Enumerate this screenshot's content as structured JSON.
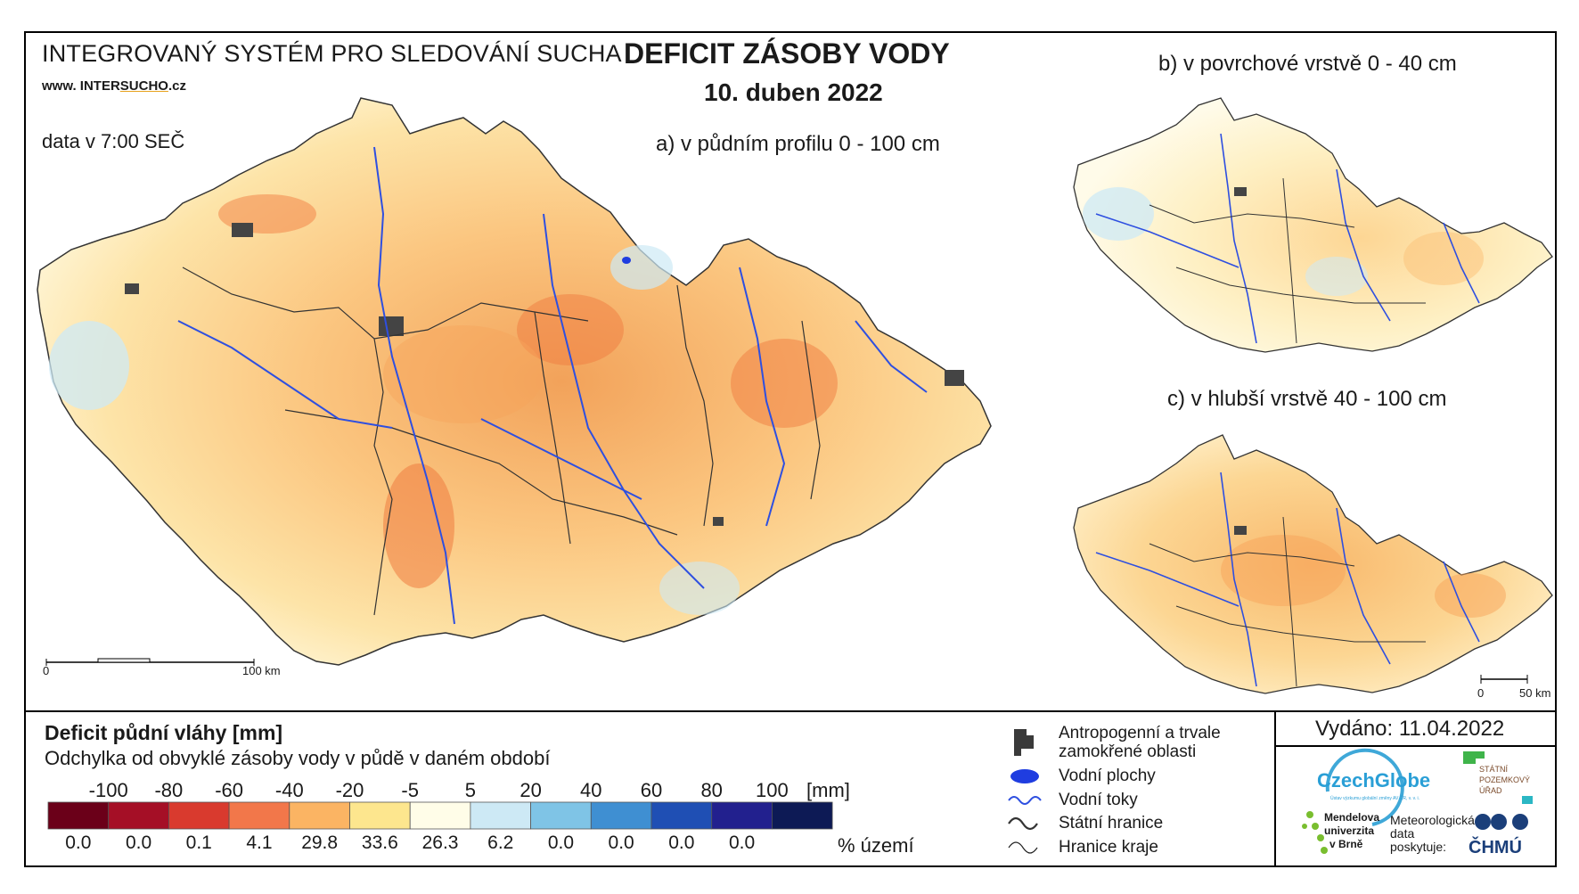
{
  "header": {
    "system_title": "INTEGROVANÝ SYSTÉM PRO SLEDOVÁNÍ SUCHA",
    "website_prefix": "www. INTER",
    "website_brand": "SUCHO",
    "website_suffix": ".cz",
    "data_time": "data v 7:00 SEČ",
    "main_title": "DEFICIT ZÁSOBY VODY",
    "main_date": "10. duben 2022"
  },
  "maps": {
    "a_label": "a) v půdním profilu 0 - 100 cm",
    "b_label": "b) v povrchové vrstvě 0 - 40 cm",
    "c_label": "c) v hlubší vrstvě 40 - 100 cm",
    "scale_main_start": "0",
    "scale_main_end": "100 km",
    "scale_small_start": "0",
    "scale_small_end": "50 km"
  },
  "legend": {
    "title": "Deficit půdní vláhy  [mm]",
    "subtitle": "Odchylka od obvyklé zásoby vody v půdě v daném období",
    "ticks": [
      "-100",
      "-80",
      "-60",
      "-40",
      "-20",
      "-5",
      "5",
      "20",
      "40",
      "60",
      "80",
      "100"
    ],
    "unit": "[mm]",
    "colors": [
      "#6b0019",
      "#a50f26",
      "#d93a2e",
      "#f2774a",
      "#fbb463",
      "#fde68e",
      "#fffde8",
      "#cde9f5",
      "#7fc4e6",
      "#3f8fd2",
      "#1f4fb4",
      "#22208e",
      "#0d1a55"
    ],
    "percentages": [
      "0.0",
      "0.0",
      "0.1",
      "4.1",
      "29.8",
      "33.6",
      "26.3",
      "6.2",
      "0.0",
      "0.0",
      "0.0",
      "0.0"
    ],
    "percent_label": "% území"
  },
  "map_legend": {
    "anthropogenic_line1": "Antropogenní a trvale",
    "anthropogenic_line2": "zamokřené oblasti",
    "water_bodies": "Vodní plochy",
    "rivers": "Vodní toky",
    "state_border": "Státní hranice",
    "region_border": "Hranice kraje"
  },
  "footer": {
    "issued": "Vydáno: 11.04.2022",
    "czechglobe": "CzechGlobe",
    "czechglobe_sub": "Ústav výzkumu globální změny AV ČR, v. v. i.",
    "spu_line1": "STÁTNÍ",
    "spu_line2": "POZEMKOVÝ",
    "spu_line3": "ÚŘAD",
    "mendelu_line1": "Mendelova",
    "mendelu_line2": "univerzita",
    "mendelu_line3": "v Brně",
    "meteo_line1": "Meteorologická",
    "meteo_line2": "data",
    "meteo_line3": "poskytuje:",
    "chmu": "ČHMÚ"
  }
}
